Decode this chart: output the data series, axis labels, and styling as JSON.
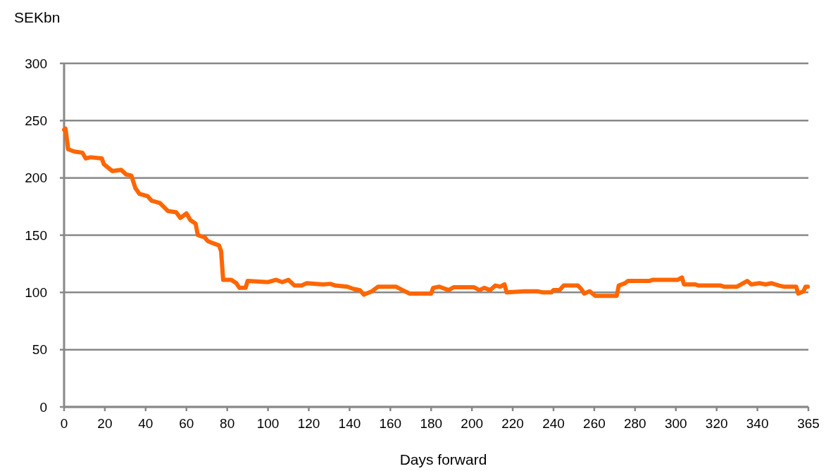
{
  "chart_data": {
    "type": "line",
    "xlabel": "Days forward",
    "ylabel": "SEKbn",
    "x": [
      0,
      0.7,
      2,
      5,
      9,
      10.6,
      13,
      18.5,
      19.5,
      23.6,
      28,
      30.4,
      33,
      35,
      37,
      41,
      43,
      47,
      51,
      55,
      57,
      60,
      62,
      64.5,
      65.6,
      69,
      70.4,
      73,
      76,
      77,
      78,
      82,
      84.5,
      86,
      89,
      90,
      100,
      104,
      107,
      110,
      113,
      116.5,
      119,
      127,
      130.5,
      133,
      139,
      142,
      145,
      147,
      151,
      154,
      162.7,
      166,
      169.5,
      180,
      181,
      184,
      188.6,
      191,
      201,
      203.7,
      206,
      209,
      211.5,
      214,
      216,
      217,
      226,
      232,
      235,
      239,
      240,
      243,
      245,
      252,
      253.6,
      255,
      257.7,
      260.5,
      271,
      272,
      275,
      276.5,
      287,
      288.5,
      301,
      303,
      304,
      309.6,
      311,
      322,
      323.6,
      330,
      332,
      335,
      337,
      341,
      344,
      347,
      350.6,
      353,
      359,
      360,
      362.6,
      363.6,
      364.7
    ],
    "series": [
      {
        "color": "#ff6600",
        "values": [
          242,
          243,
          225,
          223,
          222,
          217,
          218,
          217,
          212,
          206,
          207,
          203,
          202,
          191,
          186,
          184,
          180,
          178,
          171,
          170,
          165,
          169,
          163,
          160,
          150,
          148,
          145,
          143,
          141,
          136,
          111,
          111,
          108,
          104,
          104,
          110,
          109,
          111,
          109,
          111,
          106,
          106,
          108,
          107,
          107.5,
          106,
          105,
          103,
          102,
          98,
          101,
          105,
          105,
          102,
          99,
          99,
          104,
          105,
          102,
          104.5,
          104.5,
          102,
          104,
          102,
          106,
          105,
          107,
          100,
          101,
          101,
          100,
          100,
          102,
          102,
          106,
          106,
          103,
          99,
          101,
          97,
          97,
          106,
          108,
          110,
          110,
          111,
          111,
          113,
          107,
          107,
          106,
          106,
          105,
          105,
          107,
          110,
          107,
          108,
          107,
          108,
          106,
          105,
          105,
          99,
          101,
          105,
          105
        ]
      }
    ],
    "xlim": [
      0,
      365
    ],
    "xticks": [
      0,
      20,
      40,
      60,
      80,
      100,
      120,
      140,
      160,
      180,
      200,
      220,
      240,
      260,
      280,
      300,
      320,
      340,
      365
    ],
    "ylim": [
      0,
      300
    ],
    "yticks": [
      0,
      50,
      100,
      150,
      200,
      250,
      300
    ],
    "grid": "y",
    "marker": "none",
    "line_style": "solid"
  }
}
